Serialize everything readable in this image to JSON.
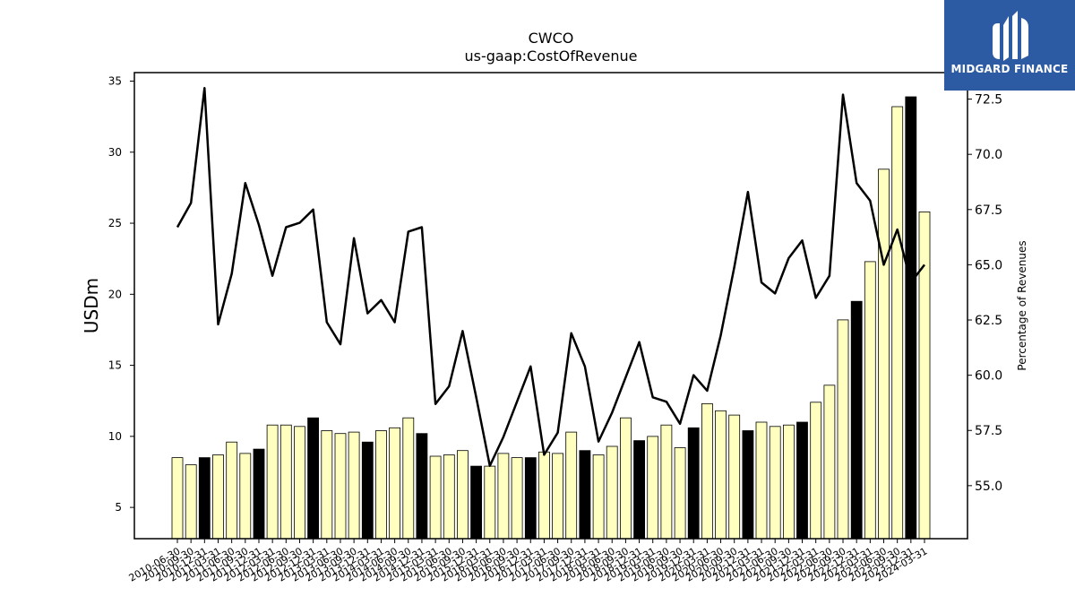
{
  "brand": {
    "name": "MIDGARD FINANCE",
    "background": "#2d5ba3",
    "icon": "midgard-logo-icon"
  },
  "chart_data": {
    "type": "bar",
    "title": "CWCO",
    "subtitle": "us-gaap:CostOfRevenue",
    "ylabel": "USDm",
    "y2label": "Percentage of Revenues",
    "ylim": [
      2.8,
      35.6
    ],
    "y2lim": [
      52.6,
      73.7
    ],
    "yticks": [
      5,
      10,
      15,
      20,
      25,
      30,
      35
    ],
    "y2ticks": [
      55.0,
      57.5,
      60.0,
      62.5,
      65.0,
      67.5,
      70.0,
      72.5
    ],
    "colors": {
      "quarter_bar": "#ffffc0",
      "year_end_bar": "#000000",
      "line": "#000000"
    },
    "categories": [
      "2010-06-30",
      "2010-09-30",
      "2010-12-31",
      "2011-03-31",
      "2011-06-30",
      "2011-09-30",
      "2011-12-31",
      "2012-03-31",
      "2012-06-30",
      "2012-09-30",
      "2012-12-31",
      "2013-03-31",
      "2013-06-30",
      "2013-09-30",
      "2013-12-31",
      "2014-03-31",
      "2014-06-30",
      "2014-09-30",
      "2014-12-31",
      "2015-03-31",
      "2015-06-30",
      "2015-09-30",
      "2015-12-31",
      "2016-03-31",
      "2016-06-30",
      "2016-09-30",
      "2016-12-31",
      "2017-03-31",
      "2017-06-30",
      "2017-09-30",
      "2017-12-31",
      "2018-03-31",
      "2018-06-30",
      "2018-09-30",
      "2018-12-31",
      "2019-03-31",
      "2019-06-30",
      "2019-09-30",
      "2019-12-31",
      "2020-03-31",
      "2020-06-30",
      "2020-09-30",
      "2020-12-31",
      "2021-03-31",
      "2021-06-30",
      "2021-09-30",
      "2021-12-31",
      "2022-03-31",
      "2022-06-30",
      "2022-09-30",
      "2022-12-31",
      "2023-03-31",
      "2023-06-30",
      "2023-09-30",
      "2023-12-31",
      "2024-03-31"
    ],
    "series": [
      {
        "name": "Cost of Revenue",
        "kind": "bar",
        "axis": "left",
        "values": [
          8.5,
          8.0,
          8.5,
          8.7,
          9.6,
          8.8,
          9.1,
          10.8,
          10.8,
          10.7,
          11.3,
          10.4,
          10.2,
          10.3,
          9.6,
          10.4,
          10.6,
          11.3,
          10.2,
          8.6,
          8.7,
          9.0,
          7.9,
          7.9,
          8.8,
          8.5,
          8.5,
          8.9,
          8.8,
          10.3,
          9.0,
          8.7,
          9.3,
          11.3,
          9.7,
          10.0,
          10.8,
          9.2,
          10.6,
          12.3,
          11.8,
          11.5,
          10.4,
          11.0,
          10.7,
          10.8,
          11.0,
          12.4,
          13.6,
          18.2,
          19.5,
          22.3,
          28.8,
          33.2,
          33.9,
          25.8
        ],
        "year_end_flags": [
          false,
          false,
          true,
          false,
          false,
          false,
          true,
          false,
          false,
          false,
          true,
          false,
          false,
          false,
          true,
          false,
          false,
          false,
          true,
          false,
          false,
          false,
          true,
          false,
          false,
          false,
          true,
          false,
          false,
          false,
          true,
          false,
          false,
          false,
          true,
          false,
          false,
          false,
          true,
          false,
          false,
          false,
          true,
          false,
          false,
          false,
          true,
          false,
          false,
          false,
          true,
          false,
          false,
          false,
          true,
          false
        ]
      },
      {
        "name": "Percentage of Revenues",
        "kind": "line",
        "axis": "right",
        "values": [
          66.7,
          67.8,
          73.0,
          62.3,
          64.6,
          68.7,
          66.8,
          64.5,
          66.7,
          66.9,
          67.5,
          62.4,
          61.4,
          66.2,
          62.8,
          63.4,
          62.4,
          66.5,
          66.7,
          58.7,
          59.5,
          62.0,
          59.0,
          55.9,
          57.2,
          58.8,
          60.4,
          56.4,
          57.4,
          61.9,
          60.4,
          57.0,
          58.3,
          59.9,
          61.5,
          59.0,
          58.8,
          57.8,
          60.0,
          59.3,
          61.8,
          64.9,
          68.3,
          64.2,
          63.7,
          65.3,
          66.1,
          63.5,
          64.5,
          72.7,
          68.7,
          67.9,
          65.0,
          66.6,
          64.2,
          65.0
        ]
      }
    ]
  }
}
